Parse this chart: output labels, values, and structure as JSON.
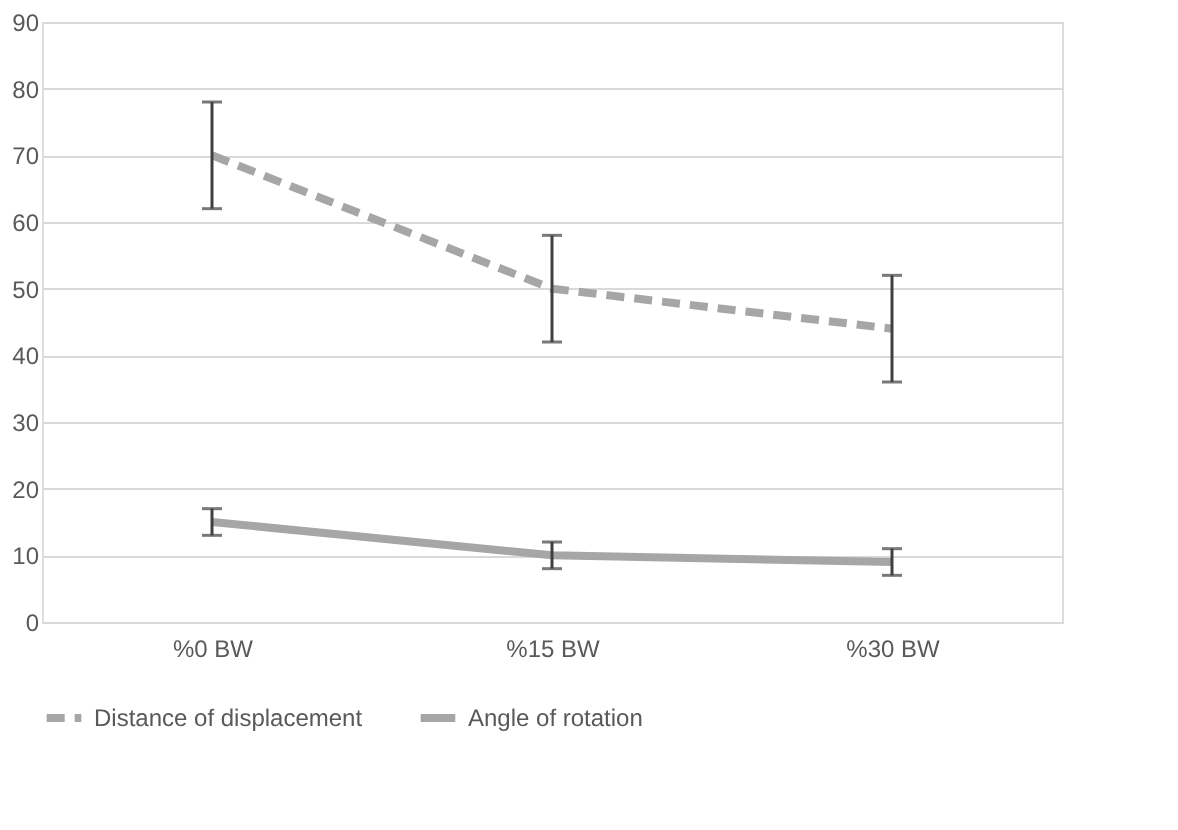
{
  "chart_data": {
    "type": "line",
    "categories": [
      "%0 BW",
      "%15 BW",
      "%30 BW"
    ],
    "series": [
      {
        "name": "Distance of displacement",
        "color": "#a6a6a6",
        "line_style": "dashed",
        "values": [
          70,
          50,
          44
        ],
        "errors": [
          8,
          8,
          8
        ]
      },
      {
        "name": "Angle of rotation",
        "color": "#a6a6a6",
        "line_style": "solid",
        "values": [
          15,
          10,
          9
        ],
        "errors": [
          2,
          2,
          2
        ]
      }
    ],
    "ylim": [
      0,
      90
    ],
    "yticks": [
      0,
      10,
      20,
      30,
      40,
      50,
      60,
      70,
      80,
      90
    ],
    "grid": "y",
    "legend": "bottom",
    "marker": "none"
  }
}
